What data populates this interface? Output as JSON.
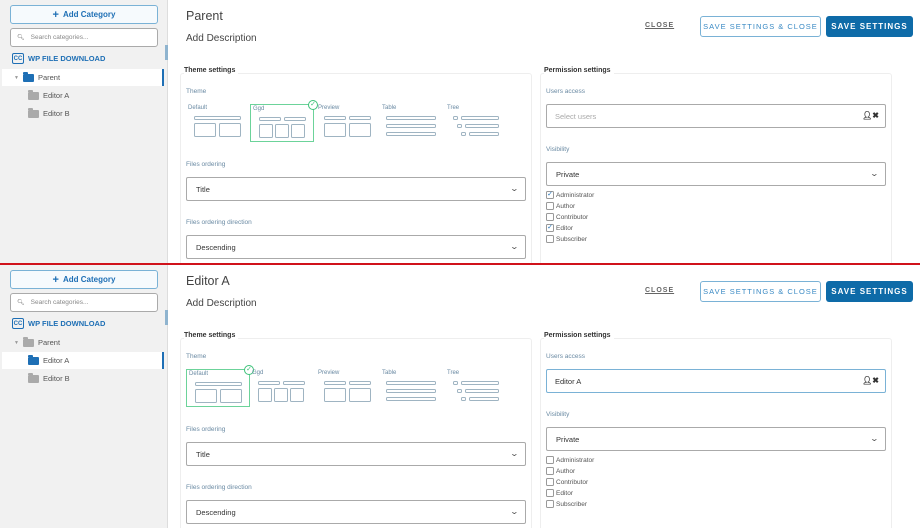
{
  "panels": [
    {
      "sidebar": {
        "add_category": "Add Category",
        "search_placeholder": "Search categories...",
        "brand": "WP FILE DOWNLOAD",
        "tree": [
          {
            "label": "Parent",
            "active": true
          },
          {
            "label": "Editor A",
            "active": false
          },
          {
            "label": "Editor B",
            "active": false
          }
        ]
      },
      "header": {
        "title": "Parent",
        "description": "Add Description",
        "close": "CLOSE",
        "save_close": "SAVE SETTINGS & CLOSE",
        "save": "SAVE SETTINGS"
      },
      "theme_settings": {
        "legend": "Theme settings",
        "theme_label": "Theme",
        "themes": [
          "Default",
          "Ggd",
          "Preview",
          "Table",
          "Tree"
        ],
        "selected_theme": "Ggd",
        "ordering_label": "Files ordering",
        "ordering_value": "Title",
        "direction_label": "Files ordering direction",
        "direction_value": "Descending"
      },
      "permission_settings": {
        "legend": "Permission settings",
        "users_label": "Users access",
        "users_placeholder": "Select users",
        "users_value": "",
        "visibility_label": "Visibility",
        "visibility_value": "Private",
        "roles": [
          {
            "label": "Administrator",
            "checked": true
          },
          {
            "label": "Author",
            "checked": false
          },
          {
            "label": "Contributor",
            "checked": false
          },
          {
            "label": "Editor",
            "checked": true
          },
          {
            "label": "Subscriber",
            "checked": false
          }
        ]
      }
    },
    {
      "sidebar": {
        "add_category": "Add Category",
        "search_placeholder": "Search categories...",
        "brand": "WP FILE DOWNLOAD",
        "tree": [
          {
            "label": "Parent",
            "active": false
          },
          {
            "label": "Editor A",
            "active": true
          },
          {
            "label": "Editor B",
            "active": false
          }
        ]
      },
      "header": {
        "title": "Editor A",
        "description": "Add Description",
        "close": "CLOSE",
        "save_close": "SAVE SETTINGS & CLOSE",
        "save": "SAVE SETTINGS"
      },
      "theme_settings": {
        "legend": "Theme settings",
        "theme_label": "Theme",
        "themes": [
          "Default",
          "Ggd",
          "Preview",
          "Table",
          "Tree"
        ],
        "selected_theme": "Default",
        "ordering_label": "Files ordering",
        "ordering_value": "Title",
        "direction_label": "Files ordering direction",
        "direction_value": "Descending"
      },
      "permission_settings": {
        "legend": "Permission settings",
        "users_label": "Users access",
        "users_placeholder": "Select users",
        "users_value": "Editor A",
        "visibility_label": "Visibility",
        "visibility_value": "Private",
        "roles": [
          {
            "label": "Administrator",
            "checked": false
          },
          {
            "label": "Author",
            "checked": false
          },
          {
            "label": "Contributor",
            "checked": false
          },
          {
            "label": "Editor",
            "checked": false
          },
          {
            "label": "Subscriber",
            "checked": false
          }
        ]
      }
    }
  ],
  "colors": {
    "accent": "#0e6ba8",
    "selected_theme": "#6cd39a",
    "divider": "#d0121b",
    "active_folder": "#1e6fb5",
    "folder": "#aaaaaa"
  }
}
